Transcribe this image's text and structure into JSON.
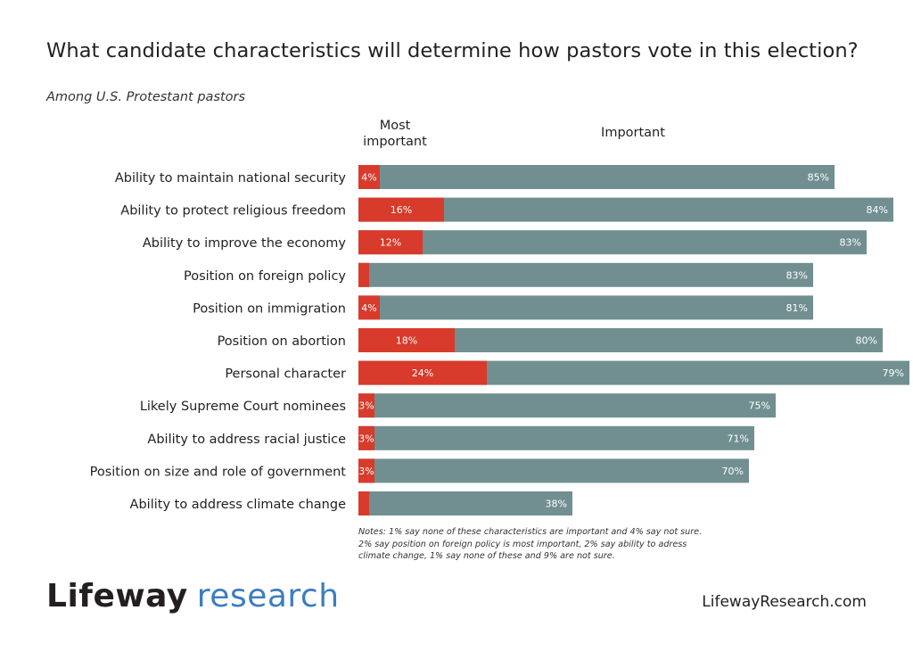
{
  "title": "What candidate characteristics will determine how pastors vote in this election?",
  "subtitle": "Among U.S. Protestant pastors",
  "colors": {
    "most_important": "#d83b2b",
    "important": "#718f91",
    "text": "#231f20",
    "brand_blue": "#3d7dbe"
  },
  "chart_data": {
    "type": "bar",
    "orientation": "horizontal",
    "column_headers": {
      "most_important": "Most important",
      "important": "Important"
    },
    "categories": [
      "Ability to maintain national security",
      "Ability to protect religious freedom",
      "Ability to improve the economy",
      "Position on foreign policy",
      "Position on immigration",
      "Position on abortion",
      "Personal character",
      "Likely Supreme Court nominees",
      "Ability to address racial justice",
      "Position on size and role of government",
      "Ability to address climate change"
    ],
    "series": [
      {
        "name": "Most important",
        "values": [
          4,
          16,
          12,
          2,
          4,
          18,
          24,
          3,
          3,
          3,
          2
        ],
        "labels": [
          "4%",
          "16%",
          "12%",
          "",
          "4%",
          "18%",
          "24%",
          "3%",
          "3%",
          "3%",
          ""
        ]
      },
      {
        "name": "Important",
        "values": [
          85,
          84,
          83,
          83,
          81,
          80,
          79,
          75,
          71,
          70,
          38
        ],
        "labels": [
          "85%",
          "84%",
          "83%",
          "83%",
          "81%",
          "80%",
          "79%",
          "75%",
          "71%",
          "70%",
          "38%"
        ]
      }
    ],
    "xlim": [
      0,
      85
    ],
    "grid": false,
    "legend": "column headers above bars"
  },
  "notes": [
    "Notes: 1% say none of these characteristics are important and 4% say not sure.",
    "2% say position on foreign policy is most important, 2% say ability to adress",
    "climate change, 1% say none of these and 9% are not sure."
  ],
  "footer": {
    "logo_part1": "Lifeway",
    "logo_part2": "research",
    "url": "LifewayResearch.com"
  }
}
